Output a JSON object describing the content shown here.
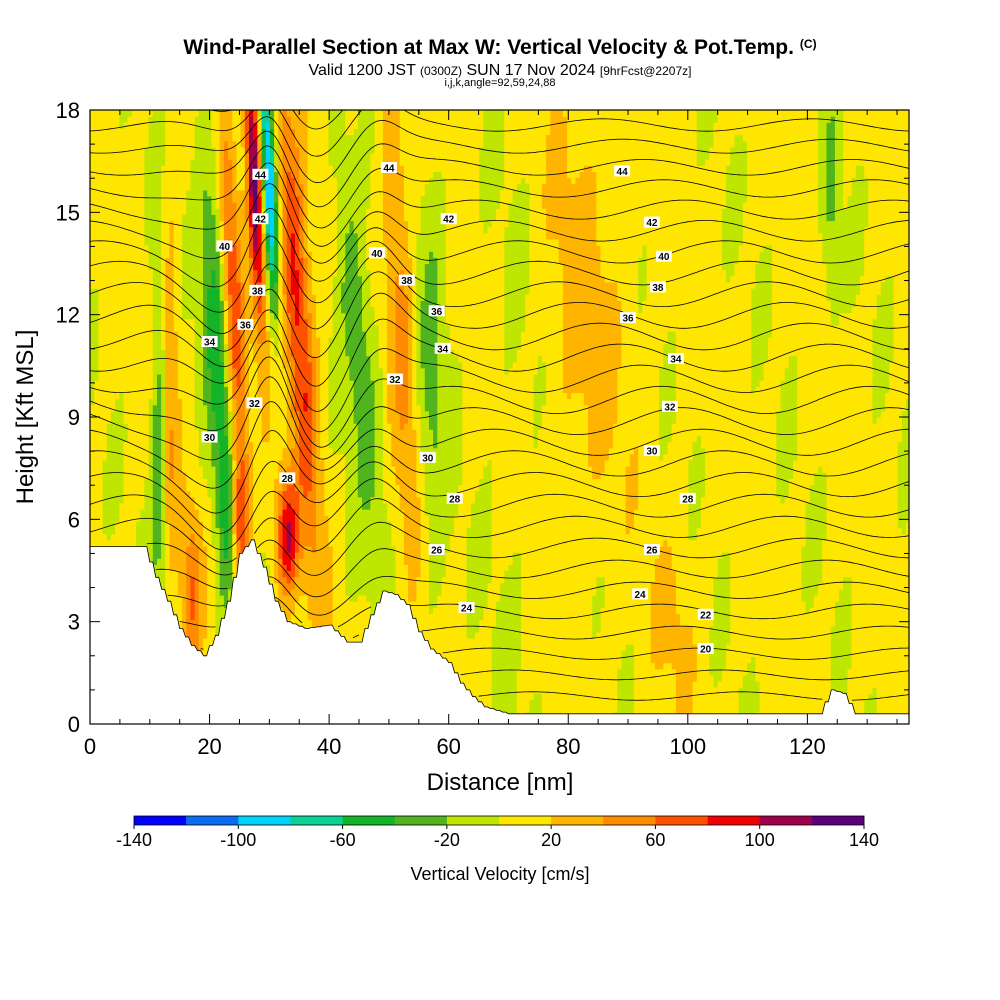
{
  "header": {
    "title": "Wind-Parallel Section at Max W: Vertical Velocity & Pot.Temp.",
    "title_mark": "(C)",
    "subtitle_main": "Valid 1200 JST",
    "subtitle_utc": "(0300Z)",
    "subtitle_date": "SUN 17 Nov 2024",
    "subtitle_run": "[9hrFcst@2207z]",
    "subtitle_indices": "i,j,k,angle=92,59,24,88"
  },
  "chart_data": {
    "type": "heatmap",
    "title": "Wind-Parallel Section at Max W: Vertical Velocity & Pot.Temp.",
    "xlabel": "Distance [nm]",
    "ylabel": "Height [Kft MSL]",
    "xlim": [
      0,
      137
    ],
    "ylim": [
      0,
      18
    ],
    "x_ticks": [
      "0",
      "20",
      "40",
      "60",
      "80",
      "100",
      "120"
    ],
    "y_ticks": [
      "0",
      "3",
      "6",
      "9",
      "12",
      "15",
      "18"
    ],
    "colorbar": {
      "label": "Vertical Velocity [cm/s]",
      "tick_labels": [
        "-140",
        "-100",
        "-60",
        "-20",
        "20",
        "60",
        "100",
        "140"
      ],
      "bins": [
        -140,
        -120,
        -100,
        -80,
        -60,
        -40,
        -20,
        0,
        20,
        40,
        60,
        80,
        100,
        120,
        140
      ],
      "colors": [
        "#0000ff",
        "#0a6cf0",
        "#00d2ff",
        "#0ad296",
        "#14b428",
        "#50b41e",
        "#bee600",
        "#ffe600",
        "#ffb400",
        "#ff8c00",
        "#ff5000",
        "#f00000",
        "#a0004b",
        "#5a0078"
      ]
    },
    "contour_field": "potential temperature",
    "contour_labels": [
      {
        "text": "44",
        "x": 28.5,
        "y": 16.1
      },
      {
        "text": "44",
        "x": 50,
        "y": 16.3
      },
      {
        "text": "44",
        "x": 89,
        "y": 16.2
      },
      {
        "text": "42",
        "x": 28.5,
        "y": 14.8
      },
      {
        "text": "42",
        "x": 60,
        "y": 14.8
      },
      {
        "text": "42",
        "x": 94,
        "y": 14.7
      },
      {
        "text": "40",
        "x": 22.5,
        "y": 14.0
      },
      {
        "text": "40",
        "x": 48,
        "y": 13.8
      },
      {
        "text": "40",
        "x": 96,
        "y": 13.7
      },
      {
        "text": "38",
        "x": 28,
        "y": 12.7
      },
      {
        "text": "38",
        "x": 53,
        "y": 13.0
      },
      {
        "text": "38",
        "x": 95,
        "y": 12.8
      },
      {
        "text": "36",
        "x": 26,
        "y": 11.7
      },
      {
        "text": "36",
        "x": 58,
        "y": 12.1
      },
      {
        "text": "36",
        "x": 90,
        "y": 11.9
      },
      {
        "text": "34",
        "x": 20,
        "y": 11.2
      },
      {
        "text": "34",
        "x": 59,
        "y": 11.0
      },
      {
        "text": "34",
        "x": 98,
        "y": 10.7
      },
      {
        "text": "32",
        "x": 51,
        "y": 10.1
      },
      {
        "text": "32",
        "x": 27.5,
        "y": 9.4
      },
      {
        "text": "32",
        "x": 97,
        "y": 9.3
      },
      {
        "text": "30",
        "x": 20,
        "y": 8.4
      },
      {
        "text": "30",
        "x": 56.5,
        "y": 7.8
      },
      {
        "text": "30",
        "x": 94,
        "y": 8.0
      },
      {
        "text": "28",
        "x": 33,
        "y": 7.2
      },
      {
        "text": "28",
        "x": 61,
        "y": 6.6
      },
      {
        "text": "28",
        "x": 100,
        "y": 6.6
      },
      {
        "text": "26",
        "x": 58,
        "y": 5.1
      },
      {
        "text": "26",
        "x": 94,
        "y": 5.1
      },
      {
        "text": "24",
        "x": 63,
        "y": 3.4
      },
      {
        "text": "24",
        "x": 92,
        "y": 3.8
      },
      {
        "text": "22",
        "x": 103,
        "y": 3.2
      },
      {
        "text": "20",
        "x": 103,
        "y": 2.2
      }
    ]
  }
}
